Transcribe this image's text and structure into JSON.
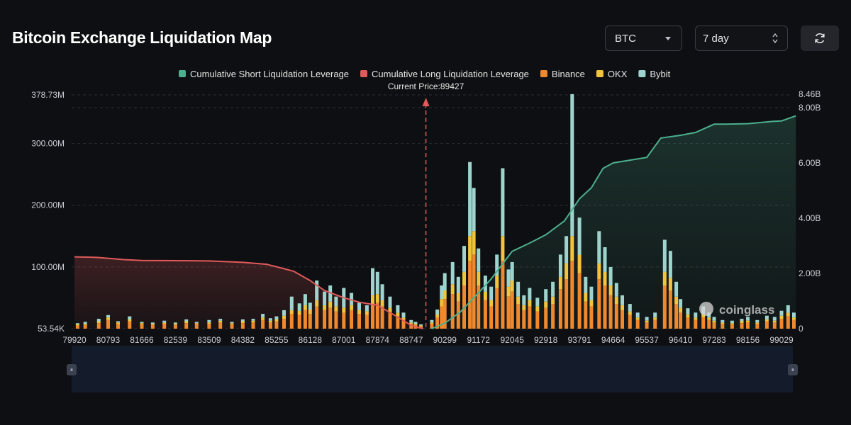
{
  "header": {
    "title": "Bitcoin Exchange Liquidation Map",
    "symbol_select": "BTC",
    "period_select": "7 day",
    "refresh_icon": "refresh-icon"
  },
  "watermark": "coinglass",
  "colors": {
    "short_cum": "#4caf8e",
    "long_cum": "#e05a5a",
    "binance": "#f0892e",
    "okx": "#f2c43c",
    "bybit": "#9ed4cd"
  },
  "chart_data": {
    "type": "bar",
    "title": "Bitcoin Exchange Liquidation Map",
    "current_price_label": "Current Price:89427",
    "current_price": 89427,
    "legend": [
      {
        "name": "Cumulative Short Liquidation Leverage",
        "color": "#4caf8e"
      },
      {
        "name": "Cumulative Long Liquidation Leverage",
        "color": "#e05a5a"
      },
      {
        "name": "Binance",
        "color": "#f0892e"
      },
      {
        "name": "OKX",
        "color": "#f2c43c"
      },
      {
        "name": "Bybit",
        "color": "#9ed4cd"
      }
    ],
    "x_ticks": [
      "79920",
      "80793",
      "81666",
      "82539",
      "83509",
      "84382",
      "85255",
      "86128",
      "87001",
      "87874",
      "88747",
      "90299",
      "91172",
      "92045",
      "92918",
      "93791",
      "94664",
      "95537",
      "96410",
      "97283",
      "98156",
      "99029"
    ],
    "x_range": [
      79920,
      99500
    ],
    "left_axis": {
      "ticks": [
        "378.73M",
        "300.00M",
        "200.00M",
        "100.00M",
        "53.54K"
      ],
      "tick_values": [
        378.73,
        300,
        200,
        100,
        0
      ],
      "range": [
        0,
        378.73
      ],
      "unit": "M"
    },
    "right_axis": {
      "ticks": [
        "8.46B",
        "8.00B",
        "6.00B",
        "4.00B",
        "2.00B",
        "0"
      ],
      "tick_values": [
        8.46,
        8,
        6,
        4,
        2,
        0
      ],
      "range": [
        0,
        8.46
      ],
      "unit": "B"
    },
    "long_cumulative": {
      "name": "Cumulative Long Liquidation Leverage",
      "x": [
        79920,
        80500,
        81200,
        81666,
        82539,
        83509,
        84382,
        85000,
        85255,
        85700,
        86128,
        86500,
        87001,
        87400,
        87874,
        88300,
        88747,
        89300
      ],
      "values": [
        2.6,
        2.58,
        2.5,
        2.47,
        2.46,
        2.45,
        2.4,
        2.33,
        2.24,
        2.08,
        1.74,
        1.38,
        1.12,
        0.96,
        0.85,
        0.5,
        0.12,
        0.0
      ]
    },
    "short_cumulative": {
      "name": "Cumulative Short Liquidation Leverage",
      "x": [
        89700,
        90299,
        90700,
        91172,
        91500,
        92045,
        92500,
        92918,
        93400,
        93791,
        94100,
        94400,
        94664,
        95100,
        95537,
        95900,
        96410,
        96800,
        97283,
        97600,
        98156,
        98800,
        99029,
        99400
      ],
      "values": [
        0.0,
        0.2,
        0.6,
        1.3,
        1.8,
        2.8,
        3.1,
        3.4,
        3.9,
        4.7,
        5.1,
        5.8,
        6.0,
        6.1,
        6.2,
        6.9,
        7.0,
        7.1,
        7.4,
        7.4,
        7.42,
        7.5,
        7.52,
        7.7
      ]
    },
    "stacked_bars": {
      "series": [
        "Binance",
        "OKX",
        "Bybit"
      ],
      "unit": "M",
      "items": [
        {
          "x": 80000,
          "binance": 5,
          "okx": 2,
          "bybit": 2
        },
        {
          "x": 80200,
          "binance": 6,
          "okx": 2,
          "bybit": 3
        },
        {
          "x": 80550,
          "binance": 9,
          "okx": 3,
          "bybit": 4
        },
        {
          "x": 80793,
          "binance": 14,
          "okx": 4,
          "bybit": 4
        },
        {
          "x": 81050,
          "binance": 8,
          "okx": 2,
          "bybit": 2
        },
        {
          "x": 81350,
          "binance": 12,
          "okx": 3,
          "bybit": 5
        },
        {
          "x": 81666,
          "binance": 7,
          "okx": 2,
          "bybit": 2
        },
        {
          "x": 81950,
          "binance": 6,
          "okx": 2,
          "bybit": 2
        },
        {
          "x": 82250,
          "binance": 8,
          "okx": 2,
          "bybit": 3
        },
        {
          "x": 82539,
          "binance": 6,
          "okx": 2,
          "bybit": 2
        },
        {
          "x": 82850,
          "binance": 9,
          "okx": 3,
          "bybit": 3
        },
        {
          "x": 83150,
          "binance": 7,
          "okx": 2,
          "bybit": 2
        },
        {
          "x": 83509,
          "binance": 8,
          "okx": 2,
          "bybit": 4
        },
        {
          "x": 83800,
          "binance": 10,
          "okx": 3,
          "bybit": 3
        },
        {
          "x": 84100,
          "binance": 7,
          "okx": 2,
          "bybit": 2
        },
        {
          "x": 84382,
          "binance": 9,
          "okx": 3,
          "bybit": 3
        },
        {
          "x": 84650,
          "binance": 10,
          "okx": 3,
          "bybit": 3
        },
        {
          "x": 84900,
          "binance": 14,
          "okx": 4,
          "bybit": 6
        },
        {
          "x": 85100,
          "binance": 10,
          "okx": 3,
          "bybit": 4
        },
        {
          "x": 85255,
          "binance": 12,
          "okx": 3,
          "bybit": 5
        },
        {
          "x": 85450,
          "binance": 16,
          "okx": 5,
          "bybit": 9
        },
        {
          "x": 85650,
          "binance": 24,
          "okx": 6,
          "bybit": 22
        },
        {
          "x": 85850,
          "binance": 22,
          "okx": 7,
          "bybit": 12
        },
        {
          "x": 86000,
          "binance": 30,
          "okx": 8,
          "bybit": 18
        },
        {
          "x": 86128,
          "binance": 24,
          "okx": 7,
          "bybit": 11
        },
        {
          "x": 86300,
          "binance": 36,
          "okx": 10,
          "bybit": 32
        },
        {
          "x": 86500,
          "binance": 30,
          "okx": 8,
          "bybit": 22
        },
        {
          "x": 86650,
          "binance": 34,
          "okx": 10,
          "bybit": 26
        },
        {
          "x": 86800,
          "binance": 28,
          "okx": 8,
          "bybit": 16
        },
        {
          "x": 87001,
          "binance": 26,
          "okx": 8,
          "bybit": 32
        },
        {
          "x": 87200,
          "binance": 30,
          "okx": 8,
          "bybit": 20
        },
        {
          "x": 87400,
          "binance": 24,
          "okx": 6,
          "bybit": 12
        },
        {
          "x": 87600,
          "binance": 22,
          "okx": 6,
          "bybit": 10
        },
        {
          "x": 87750,
          "binance": 40,
          "okx": 14,
          "bybit": 44
        },
        {
          "x": 87874,
          "binance": 42,
          "okx": 14,
          "bybit": 36
        },
        {
          "x": 88000,
          "binance": 36,
          "okx": 10,
          "bybit": 26
        },
        {
          "x": 88200,
          "binance": 26,
          "okx": 8,
          "bybit": 18
        },
        {
          "x": 88400,
          "binance": 20,
          "okx": 6,
          "bybit": 12
        },
        {
          "x": 88550,
          "binance": 14,
          "okx": 4,
          "bybit": 8
        },
        {
          "x": 88747,
          "binance": 8,
          "okx": 2,
          "bybit": 4
        },
        {
          "x": 88950,
          "binance": 6,
          "okx": 2,
          "bybit": 3
        },
        {
          "x": 89200,
          "binance": 4,
          "okx": 1,
          "bybit": 2
        },
        {
          "x": 89700,
          "binance": 8,
          "okx": 2,
          "bybit": 4
        },
        {
          "x": 89950,
          "binance": 18,
          "okx": 5,
          "bybit": 8
        },
        {
          "x": 90150,
          "binance": 36,
          "okx": 12,
          "bybit": 22
        },
        {
          "x": 90299,
          "binance": 48,
          "okx": 14,
          "bybit": 28
        },
        {
          "x": 90500,
          "binance": 56,
          "okx": 16,
          "bybit": 36
        },
        {
          "x": 90650,
          "binance": 44,
          "okx": 14,
          "bybit": 26
        },
        {
          "x": 90800,
          "binance": 70,
          "okx": 22,
          "bybit": 42
        },
        {
          "x": 90950,
          "binance": 110,
          "okx": 40,
          "bybit": 120
        },
        {
          "x": 91050,
          "binance": 120,
          "okx": 38,
          "bybit": 70
        },
        {
          "x": 91172,
          "binance": 70,
          "okx": 22,
          "bybit": 38
        },
        {
          "x": 91350,
          "binance": 46,
          "okx": 14,
          "bybit": 26
        },
        {
          "x": 91500,
          "binance": 36,
          "okx": 10,
          "bybit": 22
        },
        {
          "x": 91650,
          "binance": 66,
          "okx": 20,
          "bybit": 34
        },
        {
          "x": 91800,
          "binance": 110,
          "okx": 40,
          "bybit": 110
        },
        {
          "x": 91950,
          "binance": 52,
          "okx": 16,
          "bybit": 28
        },
        {
          "x": 92045,
          "binance": 60,
          "okx": 18,
          "bybit": 30
        },
        {
          "x": 92200,
          "binance": 40,
          "okx": 12,
          "bybit": 24
        },
        {
          "x": 92350,
          "binance": 30,
          "okx": 8,
          "bybit": 16
        },
        {
          "x": 92500,
          "binance": 36,
          "okx": 10,
          "bybit": 20
        },
        {
          "x": 92700,
          "binance": 28,
          "okx": 8,
          "bybit": 14
        },
        {
          "x": 92918,
          "binance": 34,
          "okx": 10,
          "bybit": 20
        },
        {
          "x": 93100,
          "binance": 40,
          "okx": 12,
          "bybit": 24
        },
        {
          "x": 93300,
          "binance": 64,
          "okx": 20,
          "bybit": 36
        },
        {
          "x": 93450,
          "binance": 80,
          "okx": 26,
          "bybit": 44
        },
        {
          "x": 93600,
          "binance": 110,
          "okx": 40,
          "bybit": 230
        },
        {
          "x": 93791,
          "binance": 90,
          "okx": 30,
          "bybit": 60
        },
        {
          "x": 93950,
          "binance": 44,
          "okx": 14,
          "bybit": 26
        },
        {
          "x": 94100,
          "binance": 36,
          "okx": 10,
          "bybit": 22
        },
        {
          "x": 94300,
          "binance": 80,
          "okx": 26,
          "bybit": 52
        },
        {
          "x": 94450,
          "binance": 70,
          "okx": 22,
          "bybit": 40
        },
        {
          "x": 94600,
          "binance": 54,
          "okx": 16,
          "bybit": 30
        },
        {
          "x": 94750,
          "binance": 40,
          "okx": 12,
          "bybit": 22
        },
        {
          "x": 94900,
          "binance": 30,
          "okx": 8,
          "bybit": 16
        },
        {
          "x": 95100,
          "binance": 22,
          "okx": 6,
          "bybit": 12
        },
        {
          "x": 95300,
          "binance": 14,
          "okx": 4,
          "bybit": 8
        },
        {
          "x": 95537,
          "binance": 10,
          "okx": 3,
          "bybit": 6
        },
        {
          "x": 95750,
          "binance": 14,
          "okx": 4,
          "bybit": 8
        },
        {
          "x": 96000,
          "binance": 70,
          "okx": 22,
          "bybit": 52
        },
        {
          "x": 96150,
          "binance": 62,
          "okx": 20,
          "bybit": 44
        },
        {
          "x": 96300,
          "binance": 40,
          "okx": 12,
          "bybit": 24
        },
        {
          "x": 96410,
          "binance": 26,
          "okx": 8,
          "bybit": 14
        },
        {
          "x": 96600,
          "binance": 18,
          "okx": 5,
          "bybit": 10
        },
        {
          "x": 96800,
          "binance": 14,
          "okx": 4,
          "bybit": 8
        },
        {
          "x": 97000,
          "binance": 18,
          "okx": 6,
          "bybit": 12
        },
        {
          "x": 97150,
          "binance": 14,
          "okx": 4,
          "bybit": 8
        },
        {
          "x": 97283,
          "binance": 10,
          "okx": 3,
          "bybit": 6
        },
        {
          "x": 97500,
          "binance": 8,
          "okx": 2,
          "bybit": 4
        },
        {
          "x": 97750,
          "binance": 7,
          "okx": 2,
          "bybit": 4
        },
        {
          "x": 98000,
          "binance": 9,
          "okx": 3,
          "bybit": 4
        },
        {
          "x": 98156,
          "binance": 10,
          "okx": 3,
          "bybit": 6
        },
        {
          "x": 98400,
          "binance": 8,
          "okx": 2,
          "bybit": 4
        },
        {
          "x": 98650,
          "binance": 12,
          "okx": 3,
          "bybit": 6
        },
        {
          "x": 98850,
          "binance": 10,
          "okx": 3,
          "bybit": 6
        },
        {
          "x": 99029,
          "binance": 16,
          "okx": 5,
          "bybit": 8
        },
        {
          "x": 99200,
          "binance": 20,
          "okx": 6,
          "bybit": 12
        },
        {
          "x": 99350,
          "binance": 14,
          "okx": 4,
          "bybit": 8
        }
      ]
    }
  }
}
